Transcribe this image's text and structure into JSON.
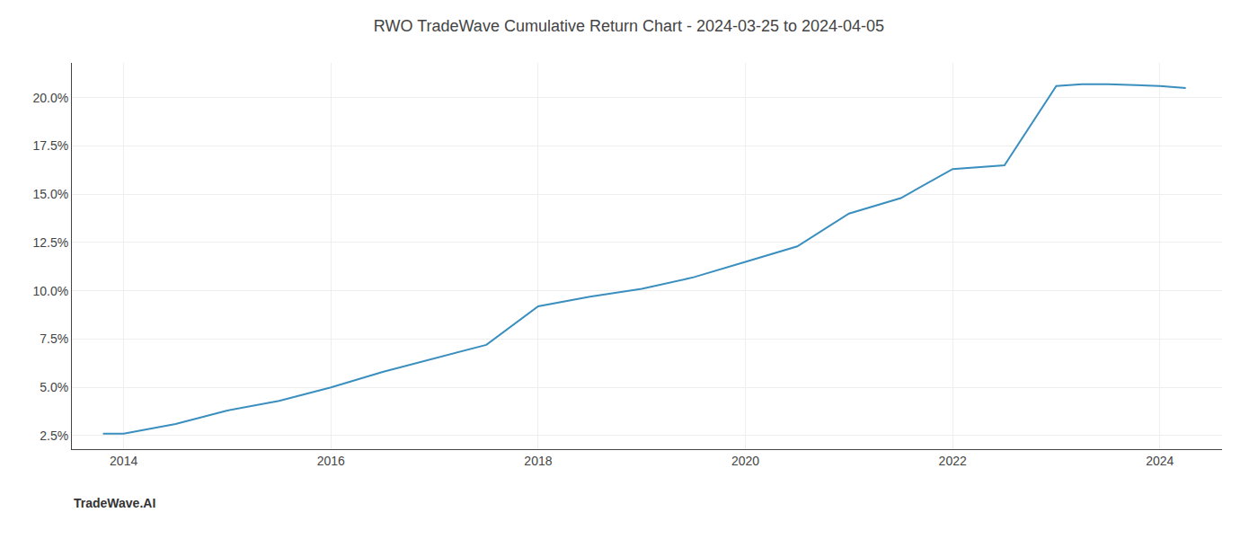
{
  "chart_data": {
    "type": "line",
    "title": "RWO TradeWave Cumulative Return Chart - 2024-03-25 to 2024-04-05",
    "annotations": [
      {
        "text": "TradeWave.AI"
      }
    ],
    "x": [
      2013.8,
      2014.0,
      2014.5,
      2015.0,
      2015.5,
      2016.0,
      2016.5,
      2017.0,
      2017.5,
      2018.0,
      2018.5,
      2019.0,
      2019.5,
      2020.0,
      2020.5,
      2021.0,
      2021.5,
      2022.0,
      2022.5,
      2023.0,
      2023.25,
      2023.5,
      2024.0,
      2024.25
    ],
    "values": [
      0.026,
      0.026,
      0.031,
      0.038,
      0.043,
      0.05,
      0.058,
      0.065,
      0.072,
      0.092,
      0.097,
      0.101,
      0.107,
      0.115,
      0.123,
      0.14,
      0.148,
      0.163,
      0.165,
      0.206,
      0.207,
      0.207,
      0.206,
      0.205
    ],
    "color": "#3a8fbf",
    "xlim": [
      2013.5,
      2024.6
    ],
    "ylim": [
      0.018,
      0.218
    ],
    "xticks": [
      2014,
      2016,
      2018,
      2020,
      2022,
      2024
    ],
    "yticks": [
      {
        "value": 0.025,
        "label": "2.5%"
      },
      {
        "value": 0.05,
        "label": "5.0%"
      },
      {
        "value": 0.075,
        "label": "7.5%"
      },
      {
        "value": 0.1,
        "label": "10.0%"
      },
      {
        "value": 0.125,
        "label": "12.5%"
      },
      {
        "value": 0.15,
        "label": "15.0%"
      },
      {
        "value": 0.175,
        "label": "17.5%"
      },
      {
        "value": 0.2,
        "label": "20.0%"
      }
    ],
    "grid": true
  }
}
